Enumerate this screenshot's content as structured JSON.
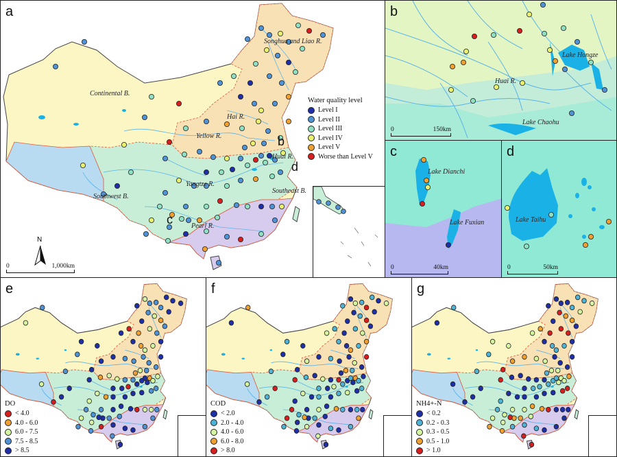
{
  "panels": {
    "a": {
      "label": "a"
    },
    "b": {
      "label": "b"
    },
    "c": {
      "label": "c"
    },
    "d": {
      "label": "d"
    },
    "e": {
      "label": "e"
    },
    "f": {
      "label": "f"
    },
    "g": {
      "label": "g"
    }
  },
  "map_a": {
    "basins": {
      "songhua": "Songhua and Liao R.",
      "continental": "Continental B.",
      "hai": "Hai R.",
      "yellow": "Yellow R.",
      "huai": "Huai R.",
      "yangtze": "Yangtze R.",
      "southwest": "Southwest B.",
      "southeast": "Southeast B.",
      "pearl": "Pearl R."
    },
    "callouts": {
      "b": "b",
      "c": "c",
      "d": "d"
    },
    "north": "N",
    "scale": {
      "start": "0",
      "end": "1,000",
      "unit": "km"
    },
    "legend": {
      "title": "Water quality level",
      "items": [
        {
          "label": "Level I",
          "color": "#1f2fa8"
        },
        {
          "label": "Level II",
          "color": "#4f93d6"
        },
        {
          "label": "Level III",
          "color": "#8fe0c3"
        },
        {
          "label": "Level IV",
          "color": "#e8f070"
        },
        {
          "label": "Level V",
          "color": "#f0a030"
        },
        {
          "label": "Worse than Level V",
          "color": "#d81f1f"
        }
      ]
    }
  },
  "map_b": {
    "lake_hongze": "Lake Hongze",
    "huai": "Huai R.",
    "lake_chaohu": "Lake Chaohu",
    "scale": {
      "start": "0",
      "end": "150",
      "unit": "km"
    }
  },
  "map_c": {
    "lake_dianchi": "Lake Dianchi",
    "lake_fuxian": "Lake Fuxian",
    "scale": {
      "start": "0",
      "end": "40",
      "unit": "km"
    }
  },
  "map_d": {
    "lake_taihu": "Lake Taihu",
    "scale": {
      "start": "0",
      "end": "50",
      "unit": "km"
    }
  },
  "legend_e": {
    "title": "DO",
    "items": [
      {
        "label": "< 4.0",
        "color": "#d81f1f"
      },
      {
        "label": "4.0 - 6.0",
        "color": "#f0a030"
      },
      {
        "label": "6.0 - 7.5",
        "color": "#d6f5a0"
      },
      {
        "label": "7.5 - 8.5",
        "color": "#4f93d6"
      },
      {
        "label": "> 8.5",
        "color": "#1f2fa8"
      }
    ]
  },
  "legend_f": {
    "title": "COD",
    "items": [
      {
        "label": "< 2.0",
        "color": "#1f2fa8"
      },
      {
        "label": "2.0 - 4.0",
        "color": "#4fb3d6"
      },
      {
        "label": "4.0 - 6.0",
        "color": "#d6f5a0"
      },
      {
        "label": "6.0 - 8.0",
        "color": "#f0a030"
      },
      {
        "label": "> 8.0",
        "color": "#d81f1f"
      }
    ]
  },
  "legend_g": {
    "title": "NH4+-N",
    "items": [
      {
        "label": "< 0.2",
        "color": "#1f2fa8"
      },
      {
        "label": "0.2 - 0.3",
        "color": "#4fb3d6"
      },
      {
        "label": "0.3 - 0.5",
        "color": "#d6f5a0"
      },
      {
        "label": "0.5 - 1.0",
        "color": "#f0a030"
      },
      {
        "label": "> 1.0",
        "color": "#d81f1f"
      }
    ]
  },
  "colors": {
    "continental": "#fbf6c4",
    "north": "#f9e1b6",
    "yangtze": "#c8eed8",
    "south": "#d7ccee",
    "southwest": "#b8dbf2",
    "lake": "#1ab2e6",
    "river": "#5ab4e6",
    "basin_border": "#e05a3a",
    "panel_b_bg": "#c3edd8",
    "panel_c_bg": "#8fe9d5",
    "panel_c_bg2": "#b8b8f0",
    "panel_d_bg": "#8fe9d5"
  }
}
